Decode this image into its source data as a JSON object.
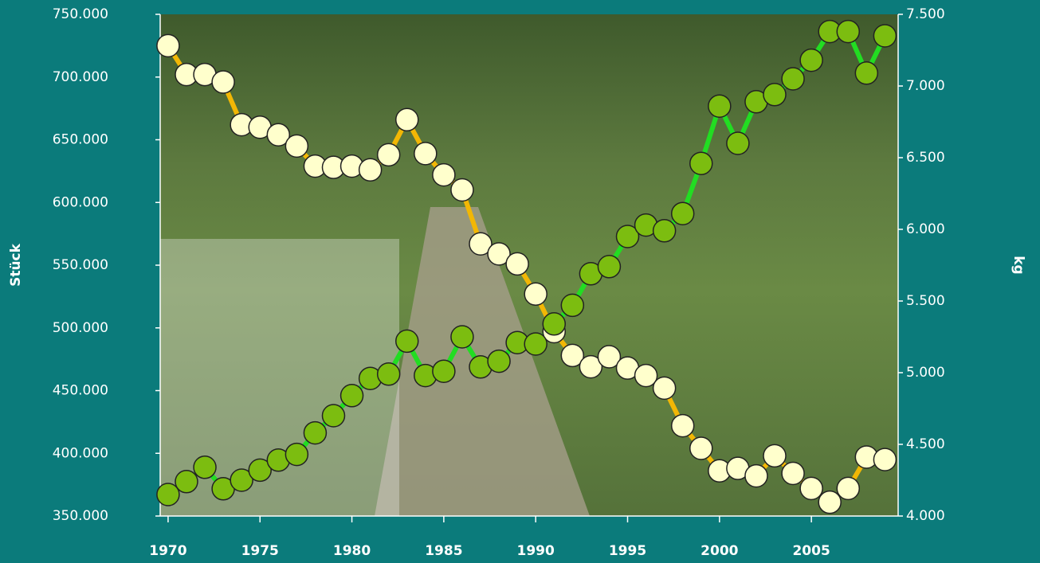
{
  "chart_data": {
    "type": "line",
    "x": [
      1970,
      1971,
      1972,
      1973,
      1974,
      1975,
      1976,
      1977,
      1978,
      1979,
      1980,
      1981,
      1982,
      1983,
      1984,
      1985,
      1986,
      1987,
      1988,
      1989,
      1990,
      1991,
      1992,
      1993,
      1994,
      1995,
      1996,
      1997,
      1998,
      1999,
      2000,
      2001,
      2002,
      2003,
      2004,
      2005,
      2006,
      2007,
      2008,
      2009
    ],
    "series": [
      {
        "color": "#f2b705",
        "marker_color": "#ffffcc",
        "values": [
          725000,
          702000,
          702000,
          696000,
          662000,
          660000,
          654000,
          645000,
          629000,
          628000,
          629000,
          626000,
          638000,
          666000,
          639000,
          622000,
          610000,
          567000,
          559000,
          551000,
          527000,
          497000,
          478000,
          469000,
          477000,
          468000,
          462000,
          452000,
          422000,
          404000,
          386000,
          388000,
          382000,
          398000,
          384000,
          372000,
          361000,
          372000,
          397000,
          395000
        ]
      },
      {
        "color": "#22dd22",
        "marker_color": "#7cbd10",
        "axis": "y2",
        "values": [
          4150,
          4240,
          4340,
          4190,
          4250,
          4320,
          4390,
          4430,
          4580,
          4700,
          4840,
          4960,
          4990,
          5220,
          4980,
          5010,
          5250,
          5040,
          5080,
          5210,
          5200,
          5340,
          5470,
          5690,
          5740,
          5950,
          6030,
          5990,
          6110,
          6460,
          6860,
          6600,
          6890,
          6940,
          7050,
          7180,
          7380,
          7380,
          7090,
          7350
        ]
      }
    ],
    "xlim": [
      1969.57,
      2009.72
    ],
    "xticks": [
      1970,
      1975,
      1980,
      1985,
      1990,
      1995,
      2000,
      2005
    ],
    "ylim": [
      350000,
      750000
    ],
    "yticks": [
      {
        "value": 350000,
        "label": "350.000"
      },
      {
        "value": 400000,
        "label": "400.000"
      },
      {
        "value": 450000,
        "label": "450.000"
      },
      {
        "value": 500000,
        "label": "500.000"
      },
      {
        "value": 550000,
        "label": "550.000"
      },
      {
        "value": 600000,
        "label": "600.000"
      },
      {
        "value": 650000,
        "label": "650.000"
      },
      {
        "value": 700000,
        "label": "700.000"
      },
      {
        "value": 750000,
        "label": "750.000"
      }
    ],
    "y2lim": [
      4000,
      7500
    ],
    "y2ticks": [
      {
        "value": 4000,
        "label": "4.000"
      },
      {
        "value": 4500,
        "label": "4.500"
      },
      {
        "value": 5000,
        "label": "5.000"
      },
      {
        "value": 5500,
        "label": "5.500"
      },
      {
        "value": 6000,
        "label": "6.000"
      },
      {
        "value": 6500,
        "label": "6.500"
      },
      {
        "value": 7000,
        "label": "7.000"
      },
      {
        "value": 7500,
        "label": "7.500"
      }
    ],
    "ylabel": "Stück",
    "y2label": "kg"
  }
}
